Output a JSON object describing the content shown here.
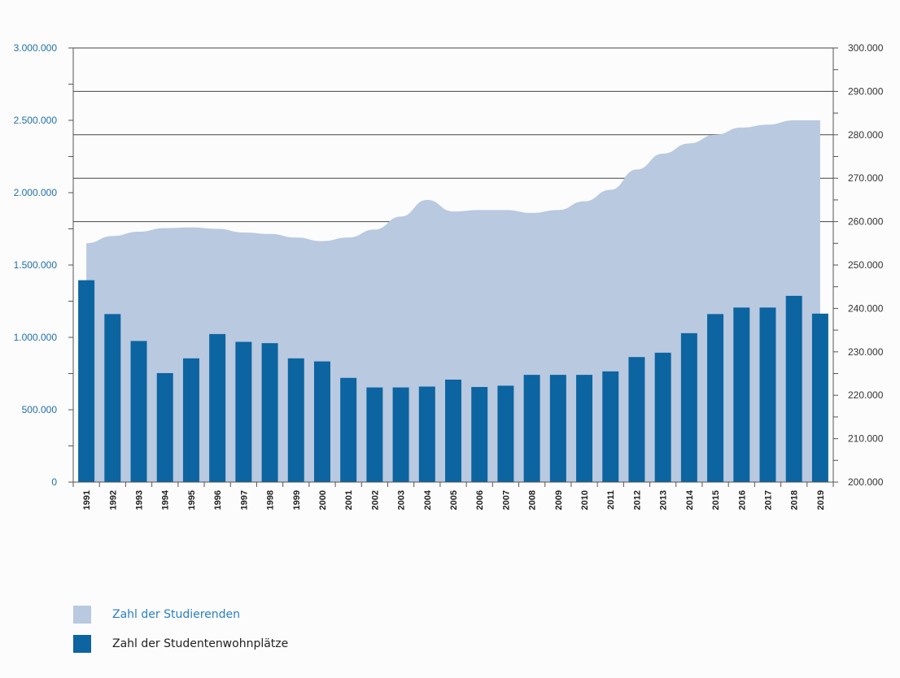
{
  "chart_data": {
    "type": "bar",
    "categories": [
      "1991",
      "1992",
      "1993",
      "1994",
      "1995",
      "1996",
      "1997",
      "1998",
      "1999",
      "2000",
      "2001",
      "2002",
      "2003",
      "2004",
      "2005",
      "2006",
      "2007",
      "2008",
      "2009",
      "2010",
      "2011",
      "2012",
      "2013",
      "2014",
      "2015",
      "2016",
      "2017",
      "2018",
      "2019"
    ],
    "series": [
      {
        "name": "Zahl der Studierenden",
        "kind": "area",
        "axis": "left",
        "color": "#b8c9e0",
        "values": [
          1650000,
          1700000,
          1730000,
          1755000,
          1760000,
          1750000,
          1725000,
          1715000,
          1690000,
          1665000,
          1690000,
          1745000,
          1835000,
          1950000,
          1870000,
          1880000,
          1880000,
          1860000,
          1880000,
          1940000,
          2020000,
          2160000,
          2270000,
          2340000,
          2400000,
          2450000,
          2470000,
          2500000,
          2500000
        ]
      },
      {
        "name": "Zahl der Studentenwohnplätze",
        "kind": "bar",
        "axis": "right",
        "color": "#0c64a0",
        "values": [
          246500,
          238700,
          232500,
          225100,
          228500,
          234100,
          232300,
          232000,
          228500,
          227800,
          224000,
          221800,
          221800,
          222000,
          223600,
          221900,
          222200,
          224700,
          224700,
          224700,
          225500,
          228800,
          229800,
          234300,
          238700,
          240200,
          240200,
          242900,
          238800
        ]
      }
    ],
    "y_left": {
      "ticks": [
        "0",
        "500.000",
        "1.000.000",
        "1.500.000",
        "2.000.000",
        "2.500.000",
        "3.000.000"
      ],
      "ylim": [
        0,
        3000000
      ]
    },
    "y_right": {
      "ticks": [
        "200.000",
        "210.000",
        "220.000",
        "230.000",
        "240.000",
        "250.000",
        "260.000",
        "270.000",
        "280.000",
        "290.000",
        "300.000"
      ],
      "ylim": [
        200000,
        300000
      ]
    },
    "grid": "horizontal",
    "legend_position": "bottom-left",
    "title": "",
    "xlabel": "",
    "ylabel": ""
  },
  "legend": {
    "items": [
      {
        "label": "Zahl der Studierenden",
        "color": "#b8c9e0"
      },
      {
        "label": "Zahl der Studentenwohnplätze",
        "color": "#0c64a0"
      }
    ]
  }
}
